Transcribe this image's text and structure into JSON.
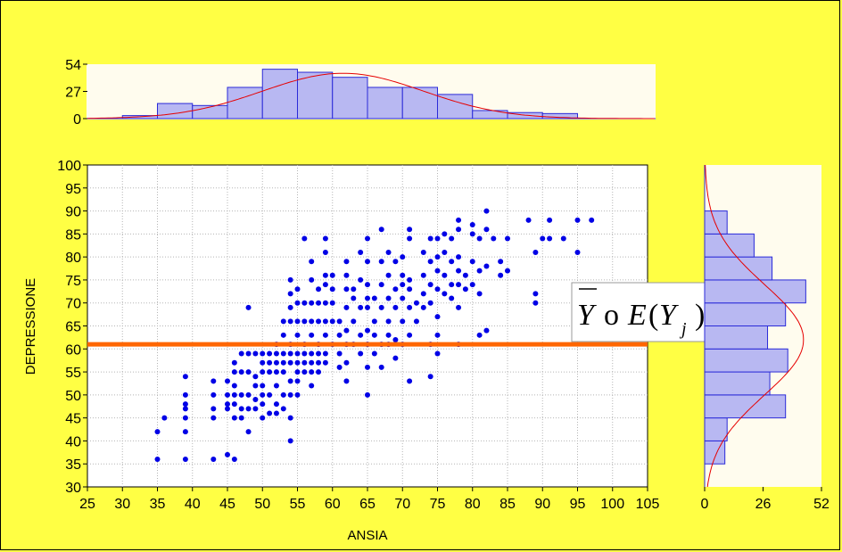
{
  "chart_data": [
    {
      "type": "bar",
      "panel": "top-histogram",
      "bin_edges": [
        30,
        35,
        40,
        45,
        50,
        55,
        60,
        65,
        70,
        75,
        80,
        85,
        90,
        95
      ],
      "values": [
        3,
        15,
        13,
        31,
        49,
        46,
        41,
        31,
        31,
        24,
        8,
        6,
        5
      ],
      "ylim": [
        0,
        54
      ],
      "yticks": [
        "0",
        "27",
        "54"
      ],
      "normal_curve": {
        "mean": 61.5,
        "sd": 11.5,
        "peak": 45
      }
    },
    {
      "type": "scatter",
      "panel": "main-scatter",
      "xlabel": "ANSIA",
      "ylabel": "DEPRESSIONE",
      "xlim": [
        25,
        105
      ],
      "ylim": [
        30,
        100
      ],
      "xticks": [
        "25",
        "30",
        "35",
        "40",
        "45",
        "50",
        "55",
        "60",
        "65",
        "70",
        "75",
        "80",
        "85",
        "90",
        "95",
        "100",
        "105"
      ],
      "yticks": [
        "30",
        "35",
        "40",
        "45",
        "50",
        "55",
        "60",
        "65",
        "70",
        "75",
        "80",
        "85",
        "90",
        "95",
        "100"
      ],
      "grid": true,
      "reference_line": {
        "y": 61,
        "color": "#ff6600"
      },
      "annotation": {
        "bar": "Y",
        "o": "o",
        "E": "E",
        "open": "(",
        "Y": "Y",
        "j": "j",
        "close": ")"
      },
      "points": [
        [
          35,
          36
        ],
        [
          35,
          42
        ],
        [
          36,
          45
        ],
        [
          39,
          36
        ],
        [
          39,
          42
        ],
        [
          39,
          45
        ],
        [
          39,
          47
        ],
        [
          39,
          48
        ],
        [
          39,
          50
        ],
        [
          39,
          54
        ],
        [
          43,
          36
        ],
        [
          43,
          45
        ],
        [
          43,
          47
        ],
        [
          43,
          50
        ],
        [
          43,
          53
        ],
        [
          45,
          37
        ],
        [
          45,
          47
        ],
        [
          45,
          48
        ],
        [
          45,
          50
        ],
        [
          45,
          53
        ],
        [
          46,
          36
        ],
        [
          46,
          45
        ],
        [
          46,
          48
        ],
        [
          46,
          50
        ],
        [
          46,
          52
        ],
        [
          46,
          55
        ],
        [
          46,
          57
        ],
        [
          47,
          45
        ],
        [
          47,
          47
        ],
        [
          47,
          50
        ],
        [
          47,
          55
        ],
        [
          47,
          59
        ],
        [
          48,
          42
        ],
        [
          48,
          47
        ],
        [
          48,
          50
        ],
        [
          48,
          55
        ],
        [
          48,
          59
        ],
        [
          48,
          69
        ],
        [
          49,
          47
        ],
        [
          49,
          49
        ],
        [
          49,
          52
        ],
        [
          49,
          54
        ],
        [
          49,
          59
        ],
        [
          50,
          45
        ],
        [
          50,
          48
        ],
        [
          50,
          50
        ],
        [
          50,
          52
        ],
        [
          50,
          55
        ],
        [
          50,
          57
        ],
        [
          50,
          59
        ],
        [
          51,
          46
        ],
        [
          51,
          50
        ],
        [
          51,
          55
        ],
        [
          51,
          57
        ],
        [
          51,
          59
        ],
        [
          52,
          46
        ],
        [
          52,
          48
        ],
        [
          52,
          52
        ],
        [
          52,
          55
        ],
        [
          52,
          57
        ],
        [
          52,
          59
        ],
        [
          52,
          61
        ],
        [
          53,
          47
        ],
        [
          53,
          50
        ],
        [
          53,
          55
        ],
        [
          53,
          57
        ],
        [
          53,
          59
        ],
        [
          53,
          63
        ],
        [
          53,
          66
        ],
        [
          54,
          40
        ],
        [
          54,
          45
        ],
        [
          54,
          50
        ],
        [
          54,
          53
        ],
        [
          54,
          57
        ],
        [
          54,
          59
        ],
        [
          54,
          61
        ],
        [
          54,
          66
        ],
        [
          54,
          69
        ],
        [
          54,
          72
        ],
        [
          54,
          75
        ],
        [
          55,
          50
        ],
        [
          55,
          53
        ],
        [
          55,
          55
        ],
        [
          55,
          57
        ],
        [
          55,
          59
        ],
        [
          55,
          63
        ],
        [
          55,
          66
        ],
        [
          55,
          70
        ],
        [
          55,
          73
        ],
        [
          56,
          55
        ],
        [
          56,
          57
        ],
        [
          56,
          59
        ],
        [
          56,
          61
        ],
        [
          56,
          66
        ],
        [
          56,
          70
        ],
        [
          56,
          84
        ],
        [
          57,
          52
        ],
        [
          57,
          55
        ],
        [
          57,
          57
        ],
        [
          57,
          59
        ],
        [
          57,
          63
        ],
        [
          57,
          66
        ],
        [
          57,
          70
        ],
        [
          57,
          75
        ],
        [
          57,
          79
        ],
        [
          58,
          55
        ],
        [
          58,
          57
        ],
        [
          58,
          59
        ],
        [
          58,
          61
        ],
        [
          58,
          66
        ],
        [
          58,
          70
        ],
        [
          58,
          73
        ],
        [
          59,
          57
        ],
        [
          59,
          59
        ],
        [
          59,
          63
        ],
        [
          59,
          66
        ],
        [
          59,
          70
        ],
        [
          59,
          74
        ],
        [
          59,
          76
        ],
        [
          59,
          81
        ],
        [
          59,
          84
        ],
        [
          60,
          61
        ],
        [
          60,
          66
        ],
        [
          60,
          70
        ],
        [
          60,
          73
        ],
        [
          60,
          76
        ],
        [
          61,
          56
        ],
        [
          61,
          59
        ],
        [
          61,
          63
        ],
        [
          61,
          66
        ],
        [
          62,
          53
        ],
        [
          62,
          57
        ],
        [
          62,
          61
        ],
        [
          62,
          64
        ],
        [
          62,
          69
        ],
        [
          62,
          73
        ],
        [
          62,
          76
        ],
        [
          62,
          79
        ],
        [
          63,
          61
        ],
        [
          63,
          66
        ],
        [
          63,
          71
        ],
        [
          63,
          73
        ],
        [
          64,
          59
        ],
        [
          64,
          63
        ],
        [
          64,
          69
        ],
        [
          64,
          75
        ],
        [
          64,
          81
        ],
        [
          65,
          50
        ],
        [
          65,
          56
        ],
        [
          65,
          61
        ],
        [
          65,
          64
        ],
        [
          65,
          69
        ],
        [
          65,
          71
        ],
        [
          65,
          74
        ],
        [
          65,
          79
        ],
        [
          65,
          84
        ],
        [
          66,
          59
        ],
        [
          66,
          63
        ],
        [
          66,
          66
        ],
        [
          66,
          71
        ],
        [
          67,
          56
        ],
        [
          67,
          61
        ],
        [
          67,
          69
        ],
        [
          67,
          74
        ],
        [
          67,
          79
        ],
        [
          67,
          86
        ],
        [
          68,
          61
        ],
        [
          68,
          63
        ],
        [
          68,
          66
        ],
        [
          68,
          71
        ],
        [
          68,
          76
        ],
        [
          68,
          81
        ],
        [
          69,
          58
        ],
        [
          69,
          62
        ],
        [
          69,
          69
        ],
        [
          69,
          73
        ],
        [
          69,
          79
        ],
        [
          70,
          61
        ],
        [
          70,
          66
        ],
        [
          70,
          71
        ],
        [
          70,
          74
        ],
        [
          70,
          76
        ],
        [
          70,
          80
        ],
        [
          71,
          53
        ],
        [
          71,
          63
        ],
        [
          71,
          69
        ],
        [
          71,
          73
        ],
        [
          71,
          75
        ],
        [
          71,
          84
        ],
        [
          71,
          86
        ],
        [
          72,
          66
        ],
        [
          72,
          70
        ],
        [
          73,
          69
        ],
        [
          73,
          72
        ],
        [
          73,
          76
        ],
        [
          73,
          81
        ],
        [
          74,
          54
        ],
        [
          74,
          61
        ],
        [
          74,
          70
        ],
        [
          74,
          74
        ],
        [
          74,
          79
        ],
        [
          74,
          84
        ],
        [
          75,
          59
        ],
        [
          75,
          63
        ],
        [
          75,
          67
        ],
        [
          75,
          73
        ],
        [
          75,
          77
        ],
        [
          75,
          80
        ],
        [
          75,
          84
        ],
        [
          76,
          72
        ],
        [
          76,
          76
        ],
        [
          76,
          81
        ],
        [
          76,
          85
        ],
        [
          77,
          71
        ],
        [
          77,
          74
        ],
        [
          77,
          79
        ],
        [
          77,
          84
        ],
        [
          78,
          61
        ],
        [
          78,
          69
        ],
        [
          78,
          74
        ],
        [
          78,
          77
        ],
        [
          78,
          80
        ],
        [
          78,
          86
        ],
        [
          78,
          88
        ],
        [
          79,
          73
        ],
        [
          79,
          76
        ],
        [
          80,
          74
        ],
        [
          80,
          79
        ],
        [
          80,
          85
        ],
        [
          80,
          87
        ],
        [
          81,
          63
        ],
        [
          81,
          72
        ],
        [
          81,
          77
        ],
        [
          81,
          84
        ],
        [
          82,
          64
        ],
        [
          82,
          78
        ],
        [
          82,
          86
        ],
        [
          82,
          90
        ],
        [
          83,
          84
        ],
        [
          84,
          76
        ],
        [
          84,
          79
        ],
        [
          85,
          77
        ],
        [
          85,
          84
        ],
        [
          88,
          88
        ],
        [
          89,
          70
        ],
        [
          89,
          72
        ],
        [
          89,
          81
        ],
        [
          90,
          84
        ],
        [
          91,
          84
        ],
        [
          91,
          88
        ],
        [
          93,
          84
        ],
        [
          95,
          81
        ],
        [
          95,
          88
        ],
        [
          97,
          88
        ]
      ]
    },
    {
      "type": "bar",
      "orientation": "horizontal",
      "panel": "right-histogram",
      "bin_edges": [
        35,
        40,
        45,
        50,
        55,
        60,
        65,
        70,
        75,
        80,
        85,
        90
      ],
      "values": [
        9,
        10,
        36,
        29,
        37,
        28,
        36,
        45,
        30,
        22,
        10
      ],
      "xlim": [
        0,
        52
      ],
      "xticks": [
        "0",
        "26",
        "52"
      ],
      "normal_curve": {
        "mean": 62,
        "sd": 12,
        "peak": 44
      }
    }
  ]
}
